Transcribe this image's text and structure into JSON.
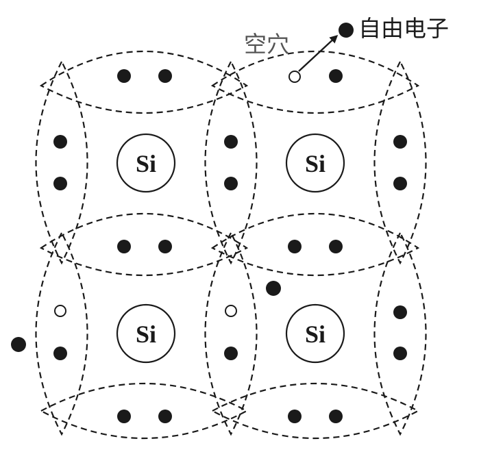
{
  "labels": {
    "hole": "空穴",
    "free_electron": "自由电子"
  },
  "atom": {
    "symbol": "Si",
    "count": 4
  },
  "colors": {
    "ink": "#1a1a1a",
    "hole_label": "#555555",
    "background": "#ffffff"
  }
}
